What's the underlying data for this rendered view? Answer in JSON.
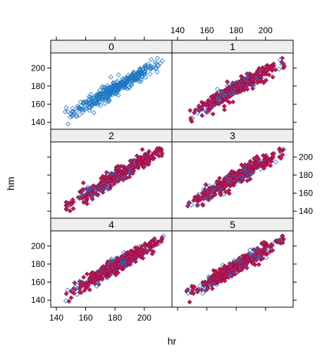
{
  "chart_data": {
    "type": "scatter",
    "layout": "lattice panels, 2 columns x 3 rows",
    "xlabel": "hr",
    "ylabel": "hm",
    "xlim": [
      140,
      215
    ],
    "ylim": [
      137,
      212
    ],
    "xticks": [
      140,
      160,
      180,
      200
    ],
    "yticks": [
      140,
      160,
      180,
      200
    ],
    "panels": [
      {
        "label": "0",
        "markers": [
          "open"
        ]
      },
      {
        "label": "1",
        "markers": [
          "open",
          "filled"
        ]
      },
      {
        "label": "2",
        "markers": [
          "open",
          "filled"
        ]
      },
      {
        "label": "3",
        "markers": [
          "open",
          "filled"
        ]
      },
      {
        "label": "4",
        "markers": [
          "open",
          "filled"
        ]
      },
      {
        "label": "5",
        "markers": [
          "open",
          "filled"
        ]
      }
    ],
    "trend": {
      "slope": 0.93,
      "intercept": 10
    },
    "series_colors": {
      "open": "#1f77c4",
      "filled": "#c2185b"
    },
    "strip_color": "#eeeeee",
    "grid": false,
    "legend": "none"
  }
}
